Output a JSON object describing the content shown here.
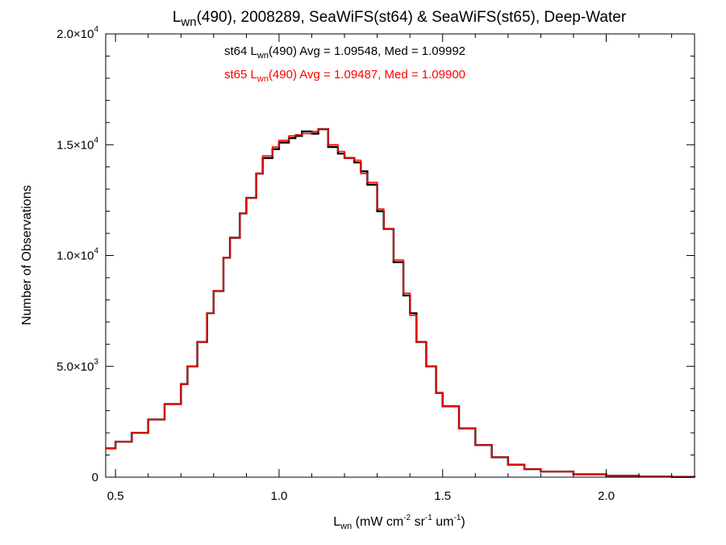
{
  "chart_data": {
    "type": "line",
    "step": true,
    "title": {
      "main": "L",
      "sub": "wn",
      "rest": "(490), 2008289, SeaWiFS(st64) & SeaWiFS(st65), Deep-Water"
    },
    "xlabel": {
      "main": "L",
      "sub": "wn",
      "parts": [
        " (mW cm",
        "-2",
        " sr",
        "-1",
        " um",
        "-1",
        ")"
      ]
    },
    "ylabel": "Number of Observations",
    "xlim": [
      0.47,
      2.27
    ],
    "ylim": [
      0,
      20000
    ],
    "x_ticks": [
      {
        "value": 0.5,
        "label": "0.5"
      },
      {
        "value": 1.0,
        "label": "1.0"
      },
      {
        "value": 1.5,
        "label": "1.5"
      },
      {
        "value": 2.0,
        "label": "2.0"
      }
    ],
    "y_ticks": [
      {
        "value": 0,
        "mant": "0",
        "exp": ""
      },
      {
        "value": 5000,
        "mant": "5.0×10",
        "exp": "3"
      },
      {
        "value": 10000,
        "mant": "1.0×10",
        "exp": "4"
      },
      {
        "value": 15000,
        "mant": "1.5×10",
        "exp": "4"
      },
      {
        "value": 20000,
        "mant": "2.0×10",
        "exp": "4"
      }
    ],
    "annotations": [
      {
        "pre": "st64 L",
        "sub": "wn",
        "post": "(490) Avg = 1.09548, Med = 1.09992",
        "color": "#000000"
      },
      {
        "pre": "st65 L",
        "sub": "wn",
        "post": "(490) Avg = 1.09487, Med = 1.09900",
        "color": "#ff0000"
      }
    ],
    "series": [
      {
        "color": "#000000",
        "x": [
          0.47,
          0.5,
          0.55,
          0.6,
          0.65,
          0.7,
          0.72,
          0.75,
          0.78,
          0.8,
          0.83,
          0.85,
          0.88,
          0.9,
          0.93,
          0.95,
          0.98,
          1.0,
          1.03,
          1.05,
          1.07,
          1.1,
          1.12,
          1.15,
          1.18,
          1.2,
          1.23,
          1.25,
          1.27,
          1.3,
          1.32,
          1.35,
          1.38,
          1.4,
          1.42,
          1.45,
          1.48,
          1.5,
          1.55,
          1.6,
          1.65,
          1.7,
          1.75,
          1.8,
          1.9,
          2.0,
          2.1,
          2.2,
          2.27
        ],
        "y": [
          1300,
          1600,
          2000,
          2600,
          3300,
          4200,
          5000,
          6100,
          7400,
          8400,
          9900,
          10800,
          11900,
          12600,
          13700,
          14400,
          14800,
          15100,
          15300,
          15400,
          15600,
          15500,
          15700,
          14900,
          14600,
          14400,
          14200,
          13800,
          13200,
          12000,
          11200,
          9700,
          8200,
          7400,
          6100,
          5000,
          3800,
          3200,
          2200,
          1450,
          900,
          560,
          360,
          250,
          130,
          65,
          30,
          12,
          5
        ]
      },
      {
        "color": "#ff0000",
        "x": [
          0.47,
          0.5,
          0.55,
          0.6,
          0.65,
          0.7,
          0.72,
          0.75,
          0.78,
          0.8,
          0.83,
          0.85,
          0.88,
          0.9,
          0.93,
          0.95,
          0.98,
          1.0,
          1.03,
          1.05,
          1.07,
          1.1,
          1.12,
          1.15,
          1.18,
          1.2,
          1.23,
          1.25,
          1.27,
          1.3,
          1.32,
          1.35,
          1.38,
          1.4,
          1.42,
          1.45,
          1.48,
          1.5,
          1.55,
          1.6,
          1.65,
          1.7,
          1.75,
          1.8,
          1.9,
          2.0,
          2.1,
          2.2,
          2.27
        ],
        "y": [
          1300,
          1600,
          2000,
          2600,
          3300,
          4200,
          5000,
          6100,
          7400,
          8400,
          9900,
          10800,
          11900,
          12600,
          13700,
          14500,
          14900,
          15200,
          15400,
          15450,
          15500,
          15600,
          15700,
          15000,
          14700,
          14400,
          14300,
          13700,
          13300,
          12100,
          11200,
          9800,
          8300,
          7300,
          6100,
          5000,
          3800,
          3200,
          2200,
          1450,
          900,
          560,
          360,
          250,
          130,
          65,
          30,
          12,
          5
        ]
      }
    ]
  }
}
